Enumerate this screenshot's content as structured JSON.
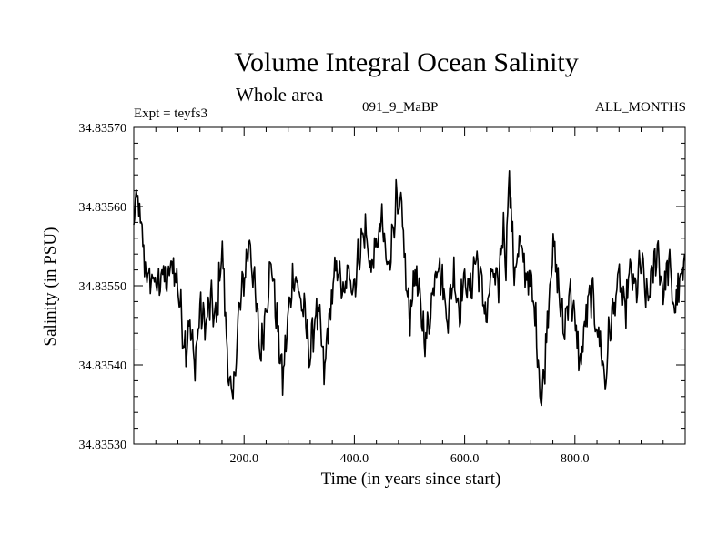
{
  "chart_data": {
    "type": "line",
    "title": "Volume Integral Ocean Salinity",
    "subtitle": "Whole area",
    "annotations": {
      "left": "Expt = teyfs3",
      "center": "091_9_MaBP",
      "right": "ALL_MONTHS"
    },
    "xlabel": "Time (in years since start)",
    "ylabel": "Salinity (in PSU)",
    "xlim": [
      0,
      1000
    ],
    "ylim": [
      34.8353,
      34.8357
    ],
    "xticks": [
      200,
      400,
      600,
      800
    ],
    "xtick_labels": [
      "200.0",
      "400.0",
      "600.0",
      "800.0"
    ],
    "yticks": [
      34.8353,
      34.8354,
      34.8355,
      34.8356,
      34.8357
    ],
    "ytick_labels": [
      "34.83530",
      "34.83540",
      "34.83550",
      "34.83560",
      "34.83570"
    ],
    "series": [
      {
        "name": "Salinity",
        "x": [
          0,
          3,
          6,
          10,
          15,
          20,
          25,
          30,
          35,
          40,
          50,
          60,
          70,
          80,
          90,
          95,
          100,
          110,
          115,
          120,
          130,
          140,
          150,
          155,
          160,
          165,
          170,
          175,
          178,
          182,
          190,
          200,
          210,
          220,
          230,
          240,
          250,
          260,
          270,
          280,
          290,
          300,
          310,
          320,
          330,
          340,
          345,
          350,
          360,
          370,
          380,
          390,
          400,
          410,
          420,
          430,
          440,
          450,
          460,
          470,
          475,
          480,
          485,
          490,
          495,
          500,
          510,
          520,
          530,
          540,
          550,
          560,
          570,
          580,
          590,
          600,
          610,
          620,
          630,
          640,
          650,
          660,
          670,
          675,
          680,
          685,
          690,
          700,
          710,
          720,
          730,
          735,
          740,
          745,
          750,
          755,
          760,
          770,
          780,
          790,
          800,
          810,
          820,
          830,
          840,
          850,
          855,
          860,
          870,
          880,
          890,
          900,
          910,
          920,
          930,
          940,
          950,
          960,
          970,
          980,
          990,
          1000
        ],
        "values": [
          34.83557,
          34.8356,
          34.83561,
          34.83559,
          34.83556,
          34.83553,
          34.83551,
          34.8355,
          34.83552,
          34.83549,
          34.83552,
          34.8355,
          34.83553,
          34.8355,
          34.83544,
          34.83542,
          34.83546,
          34.8354,
          34.83543,
          34.83547,
          34.83545,
          34.83548,
          34.83545,
          34.83551,
          34.83555,
          34.83548,
          34.83541,
          34.83537,
          34.83534,
          34.83538,
          34.83546,
          34.83551,
          34.83556,
          34.83549,
          34.83541,
          34.83548,
          34.83553,
          34.83545,
          34.83538,
          34.83546,
          34.83552,
          34.83549,
          34.83546,
          34.83541,
          34.83547,
          34.83544,
          34.83538,
          34.83543,
          34.83549,
          34.83553,
          34.83548,
          34.83552,
          34.8355,
          34.83555,
          34.83557,
          34.83552,
          34.83555,
          34.83558,
          34.83552,
          34.83557,
          34.83561,
          34.83558,
          34.8356,
          34.83555,
          34.83549,
          34.83546,
          34.83552,
          34.83547,
          34.83543,
          34.83548,
          34.83554,
          34.8355,
          34.83546,
          34.83552,
          34.83547,
          34.83551,
          34.83549,
          34.83554,
          34.8355,
          34.83546,
          34.83552,
          34.83549,
          34.83558,
          34.83553,
          34.83565,
          34.83558,
          34.83552,
          34.83555,
          34.83552,
          34.8355,
          34.83545,
          34.83539,
          34.83535,
          34.8354,
          34.83546,
          34.83551,
          34.83555,
          34.8355,
          34.83544,
          34.8355,
          34.83545,
          34.8354,
          34.83546,
          34.83549,
          34.83545,
          34.83541,
          34.83537,
          34.83543,
          34.83547,
          34.83551,
          34.83546,
          34.83552,
          34.83549,
          34.83553,
          34.83548,
          34.83551,
          34.83555,
          34.83549,
          34.83553,
          34.83547,
          34.8355,
          34.83552
        ]
      }
    ]
  }
}
